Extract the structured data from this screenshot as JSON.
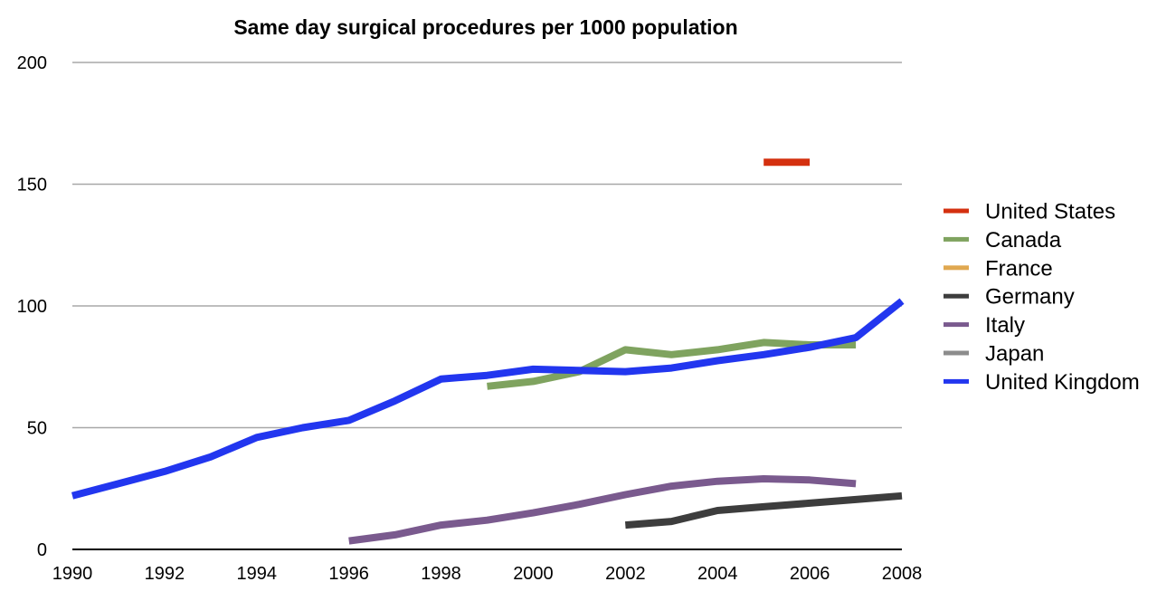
{
  "chart_data": {
    "type": "line",
    "title": "Same day surgical procedures per 1000 population",
    "xlabel": "",
    "ylabel": "",
    "xlim": [
      1990,
      2008
    ],
    "ylim": [
      0,
      200
    ],
    "x_ticks": [
      "1990",
      "1992",
      "1994",
      "1996",
      "1998",
      "2000",
      "2002",
      "2004",
      "2006",
      "2008"
    ],
    "y_ticks": [
      "0",
      "50",
      "100",
      "150",
      "200"
    ],
    "grid": true,
    "legend_position": "right",
    "series": [
      {
        "name": "United States",
        "color": "#d4300f",
        "points": [
          [
            2005,
            159
          ],
          [
            2006,
            159
          ]
        ]
      },
      {
        "name": "Canada",
        "color": "#7fa35f",
        "points": [
          [
            1999,
            67
          ],
          [
            2000,
            69
          ],
          [
            2001,
            73
          ],
          [
            2002,
            82
          ],
          [
            2003,
            80
          ],
          [
            2004,
            82
          ],
          [
            2005,
            85
          ],
          [
            2006,
            84
          ],
          [
            2007,
            84
          ]
        ]
      },
      {
        "name": "France",
        "color": "#e0a850",
        "points": []
      },
      {
        "name": "Germany",
        "color": "#3d3d3d",
        "points": [
          [
            2002,
            10
          ],
          [
            2003,
            11.5
          ],
          [
            2004,
            16
          ],
          [
            2005,
            17.5
          ],
          [
            2006,
            19
          ],
          [
            2007,
            20.5
          ],
          [
            2008,
            22
          ]
        ]
      },
      {
        "name": "Italy",
        "color": "#7a5a8e",
        "points": [
          [
            1996,
            3.5
          ],
          [
            1997,
            6
          ],
          [
            1998,
            10
          ],
          [
            1999,
            12
          ],
          [
            2000,
            15
          ],
          [
            2001,
            18.5
          ],
          [
            2002,
            22.5
          ],
          [
            2003,
            26
          ],
          [
            2004,
            28
          ],
          [
            2005,
            29
          ],
          [
            2006,
            28.5
          ],
          [
            2007,
            27
          ]
        ]
      },
      {
        "name": "Japan",
        "color": "#8c8c8c",
        "points": []
      },
      {
        "name": "United Kingdom",
        "color": "#2236ef",
        "points": [
          [
            1990,
            22
          ],
          [
            1991,
            27
          ],
          [
            1992,
            32
          ],
          [
            1993,
            38
          ],
          [
            1994,
            46
          ],
          [
            1995,
            50
          ],
          [
            1996,
            53
          ],
          [
            1997,
            61
          ],
          [
            1998,
            70
          ],
          [
            1999,
            71.5
          ],
          [
            2000,
            74
          ],
          [
            2001,
            73.5
          ],
          [
            2002,
            73
          ],
          [
            2003,
            74.5
          ],
          [
            2004,
            77.5
          ],
          [
            2005,
            80
          ],
          [
            2006,
            83
          ],
          [
            2007,
            87
          ],
          [
            2008,
            102
          ]
        ]
      }
    ]
  }
}
